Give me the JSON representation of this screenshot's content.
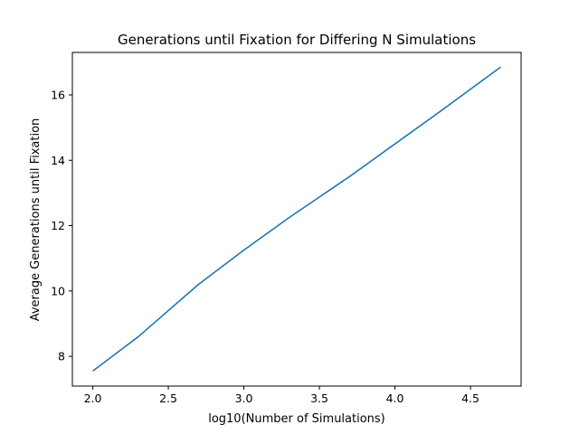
{
  "chart_data": {
    "type": "line",
    "title": "Generations until Fixation for Differing N Simulations",
    "xlabel": "log10(Number of Simulations)",
    "ylabel": "Average Generations until Fixation",
    "xlim": [
      1.865,
      4.835
    ],
    "ylim": [
      7.09,
      17.3
    ],
    "xticks": [
      2.0,
      2.5,
      3.0,
      3.5,
      4.0,
      4.5
    ],
    "xtick_labels": [
      "2.0",
      "2.5",
      "3.0",
      "3.5",
      "4.0",
      "4.5"
    ],
    "yticks": [
      8,
      10,
      12,
      14,
      16
    ],
    "ytick_labels": [
      "8",
      "10",
      "12",
      "14",
      "16"
    ],
    "grid": false,
    "colors": {
      "line": "#1f77b4",
      "axes": "#000000",
      "background": "#ffffff"
    },
    "series": [
      {
        "x": [
          2.0,
          2.301,
          2.699,
          3.0,
          3.301,
          3.699,
          4.0,
          4.301,
          4.699
        ],
        "y": [
          7.55,
          8.6,
          10.2,
          11.25,
          12.25,
          13.5,
          14.5,
          15.5,
          16.85
        ]
      }
    ]
  }
}
